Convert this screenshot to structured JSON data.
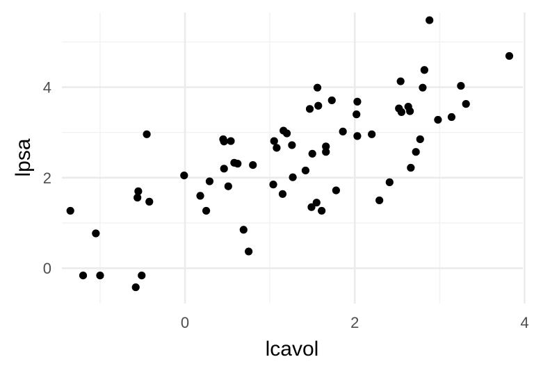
{
  "chart_data": {
    "type": "scatter",
    "xlabel": "lcavol",
    "ylabel": "lpsa",
    "xlim": [
      -1.45,
      3.98
    ],
    "ylim": [
      -0.78,
      5.65
    ],
    "x_ticks": [
      0,
      2,
      4
    ],
    "y_ticks": [
      0,
      2,
      4
    ],
    "x_minor": [
      -1,
      1,
      3
    ],
    "y_minor": [
      1,
      3,
      5
    ],
    "grid": true,
    "legend": "none",
    "point_color": "#000000",
    "points": [
      {
        "x": -1.35,
        "y": 1.27
      },
      {
        "x": -1.2,
        "y": -0.16
      },
      {
        "x": -1.05,
        "y": 0.77
      },
      {
        "x": -1.0,
        "y": -0.16
      },
      {
        "x": -0.58,
        "y": -0.42
      },
      {
        "x": -0.56,
        "y": 1.56
      },
      {
        "x": -0.55,
        "y": 1.7
      },
      {
        "x": -0.51,
        "y": -0.16
      },
      {
        "x": -0.45,
        "y": 2.96
      },
      {
        "x": -0.42,
        "y": 1.47
      },
      {
        "x": -0.01,
        "y": 2.05
      },
      {
        "x": 0.18,
        "y": 1.6
      },
      {
        "x": 0.25,
        "y": 1.27
      },
      {
        "x": 0.29,
        "y": 1.92
      },
      {
        "x": 0.45,
        "y": 2.85
      },
      {
        "x": 0.46,
        "y": 2.8
      },
      {
        "x": 0.46,
        "y": 2.2
      },
      {
        "x": 0.51,
        "y": 1.81
      },
      {
        "x": 0.54,
        "y": 2.81
      },
      {
        "x": 0.58,
        "y": 2.33
      },
      {
        "x": 0.62,
        "y": 2.31
      },
      {
        "x": 0.69,
        "y": 0.85
      },
      {
        "x": 0.75,
        "y": 0.37
      },
      {
        "x": 0.8,
        "y": 2.28
      },
      {
        "x": 1.04,
        "y": 1.85
      },
      {
        "x": 1.05,
        "y": 2.81
      },
      {
        "x": 1.08,
        "y": 2.66
      },
      {
        "x": 1.15,
        "y": 1.64
      },
      {
        "x": 1.16,
        "y": 3.04
      },
      {
        "x": 1.2,
        "y": 2.98
      },
      {
        "x": 1.26,
        "y": 2.72
      },
      {
        "x": 1.27,
        "y": 2.01
      },
      {
        "x": 1.42,
        "y": 2.16
      },
      {
        "x": 1.47,
        "y": 3.52
      },
      {
        "x": 1.49,
        "y": 1.35
      },
      {
        "x": 1.5,
        "y": 2.53
      },
      {
        "x": 1.55,
        "y": 1.45
      },
      {
        "x": 1.56,
        "y": 3.99
      },
      {
        "x": 1.57,
        "y": 3.59
      },
      {
        "x": 1.61,
        "y": 1.27
      },
      {
        "x": 1.66,
        "y": 2.69
      },
      {
        "x": 1.66,
        "y": 2.57
      },
      {
        "x": 1.73,
        "y": 3.71
      },
      {
        "x": 1.78,
        "y": 1.72
      },
      {
        "x": 1.86,
        "y": 3.02
      },
      {
        "x": 2.02,
        "y": 3.4
      },
      {
        "x": 2.03,
        "y": 3.68
      },
      {
        "x": 2.03,
        "y": 2.92
      },
      {
        "x": 2.2,
        "y": 2.96
      },
      {
        "x": 2.29,
        "y": 1.5
      },
      {
        "x": 2.41,
        "y": 1.9
      },
      {
        "x": 2.52,
        "y": 3.53
      },
      {
        "x": 2.54,
        "y": 4.13
      },
      {
        "x": 2.55,
        "y": 3.45
      },
      {
        "x": 2.63,
        "y": 3.57
      },
      {
        "x": 2.65,
        "y": 3.47
      },
      {
        "x": 2.66,
        "y": 2.22
      },
      {
        "x": 2.72,
        "y": 2.57
      },
      {
        "x": 2.77,
        "y": 2.85
      },
      {
        "x": 2.8,
        "y": 3.99
      },
      {
        "x": 2.82,
        "y": 4.38
      },
      {
        "x": 2.88,
        "y": 5.48
      },
      {
        "x": 2.98,
        "y": 3.28
      },
      {
        "x": 3.14,
        "y": 3.34
      },
      {
        "x": 3.25,
        "y": 4.03
      },
      {
        "x": 3.31,
        "y": 3.63
      },
      {
        "x": 3.82,
        "y": 4.69
      }
    ]
  }
}
